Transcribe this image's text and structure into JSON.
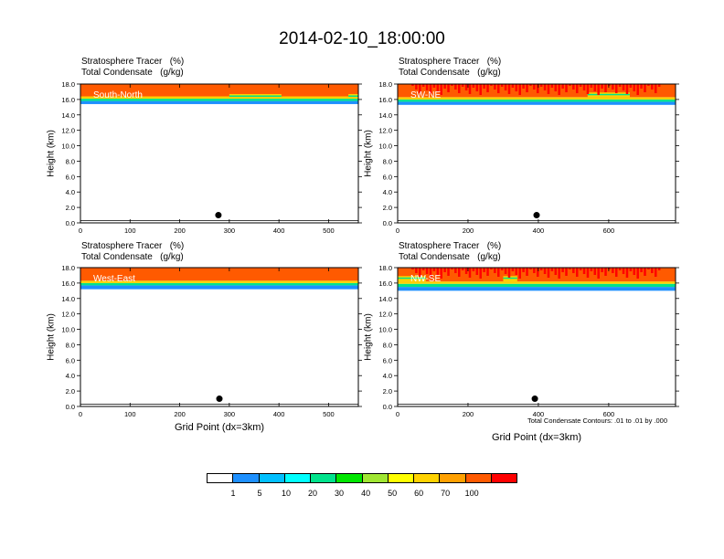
{
  "figure": {
    "title": "2014-02-10_18:00:00",
    "y_axis_label": "Height (km)",
    "x_axis_label": "Grid Point (dx=3km)",
    "footnote": "Total Condensate Contours: .01 to .01 by .000",
    "colorbar": {
      "colors": [
        "#ffffff",
        "#1e90ff",
        "#00bfff",
        "#00ffff",
        "#00e38c",
        "#00e600",
        "#a0e632",
        "#ffff00",
        "#ffd200",
        "#ffa000",
        "#ff5a00",
        "#ff0000"
      ],
      "labels": [
        "1",
        "5",
        "10",
        "20",
        "30",
        "40",
        "50",
        "60",
        "70",
        "100"
      ]
    }
  },
  "chart_data": [
    {
      "type": "heatmap",
      "subplot": "South-North",
      "title_lines": [
        "Stratosphere Tracer   (%)",
        "Total Condensate   (g/kg)"
      ],
      "ylabel": "Height (km)",
      "ylim": [
        0,
        18
      ],
      "yticks": [
        "0.0",
        "2.0",
        "4.0",
        "6.0",
        "8.0",
        "10.0",
        "12.0",
        "14.0",
        "16.0",
        "18.0"
      ],
      "xlim": [
        0,
        560
      ],
      "xticks": [
        0,
        100,
        200,
        300,
        400,
        500
      ],
      "tracer_layers_km": [
        {
          "level": "1",
          "base": 15.4,
          "color": "#1e90ff"
        },
        {
          "level": "5-30",
          "base": 15.8,
          "color": "#00e38c"
        },
        {
          "level": "30-60",
          "base": 16.1,
          "color": "#ffd200"
        },
        {
          "level": "70-100",
          "base": 16.4,
          "color": "#ff5a00"
        }
      ],
      "bumps": [
        {
          "x": [
            300,
            405
          ],
          "top": 16.7
        },
        {
          "x": [
            540,
            560
          ],
          "top": 16.7
        }
      ],
      "marker": {
        "x": 278,
        "y": 1.0
      }
    },
    {
      "type": "heatmap",
      "subplot": "SW-NE",
      "title_lines": [
        "Stratosphere Tracer   (%)",
        "Total Condensate   (g/kg)"
      ],
      "ylabel": "Height (km)",
      "ylim": [
        0,
        18
      ],
      "yticks": [
        "0.0",
        "2.0",
        "4.0",
        "6.0",
        "8.0",
        "10.0",
        "12.0",
        "14.0",
        "16.0",
        "18.0"
      ],
      "xlim": [
        0,
        790
      ],
      "xticks": [
        0,
        200,
        400,
        600
      ],
      "tracer_layers_km": [
        {
          "level": "1",
          "base": 15.3,
          "color": "#1e90ff"
        },
        {
          "level": "5-30",
          "base": 15.7,
          "color": "#00e38c"
        },
        {
          "level": "30-60",
          "base": 16.0,
          "color": "#ffd200"
        },
        {
          "level": "70-100",
          "base": 16.3,
          "color": "#ff5a00"
        }
      ],
      "bumps": [
        {
          "x": [
            540,
            660
          ],
          "top": 16.9
        }
      ],
      "marker": {
        "x": 395,
        "y": 1.0
      }
    },
    {
      "type": "heatmap",
      "subplot": "West-East",
      "title_lines": [
        "Stratosphere Tracer   (%)",
        "Total Condensate   (g/kg)"
      ],
      "ylabel": "Height (km)",
      "ylim": [
        0,
        18
      ],
      "yticks": [
        "0.0",
        "2.0",
        "4.0",
        "6.0",
        "8.0",
        "10.0",
        "12.0",
        "14.0",
        "16.0",
        "18.0"
      ],
      "xlim": [
        0,
        560
      ],
      "xticks": [
        0,
        100,
        200,
        300,
        400,
        500
      ],
      "xlabel": "Grid Point (dx=3km)",
      "tracer_layers_km": [
        {
          "level": "1",
          "base": 15.2,
          "color": "#1e90ff"
        },
        {
          "level": "5-30",
          "base": 15.7,
          "color": "#00e38c"
        },
        {
          "level": "30-60",
          "base": 16.0,
          "color": "#ffd200"
        },
        {
          "level": "70-100",
          "base": 16.3,
          "color": "#ff5a00"
        }
      ],
      "bumps": [],
      "marker": {
        "x": 280,
        "y": 1.0
      }
    },
    {
      "type": "heatmap",
      "subplot": "NW-SE",
      "title_lines": [
        "Stratosphere Tracer   (%)",
        "Total Condensate   (g/kg)"
      ],
      "ylabel": "Height (km)",
      "ylim": [
        0,
        18
      ],
      "yticks": [
        "0.0",
        "2.0",
        "4.0",
        "6.0",
        "8.0",
        "10.0",
        "12.0",
        "14.0",
        "16.0",
        "18.0"
      ],
      "xlim": [
        0,
        790
      ],
      "xticks": [
        0,
        200,
        400,
        600
      ],
      "xlabel": "Grid Point (dx=3km)",
      "tracer_layers_km": [
        {
          "level": "1",
          "base": 15.0,
          "color": "#1e90ff"
        },
        {
          "level": "5-30",
          "base": 15.5,
          "color": "#00e38c"
        },
        {
          "level": "30-60",
          "base": 15.9,
          "color": "#ffd200"
        },
        {
          "level": "70-100",
          "base": 16.2,
          "color": "#ff5a00"
        }
      ],
      "bumps": [
        {
          "x": [
            0,
            80
          ],
          "top": 16.9
        },
        {
          "x": [
            300,
            340
          ],
          "top": 16.9
        }
      ],
      "marker": {
        "x": 390,
        "y": 1.0
      }
    }
  ]
}
